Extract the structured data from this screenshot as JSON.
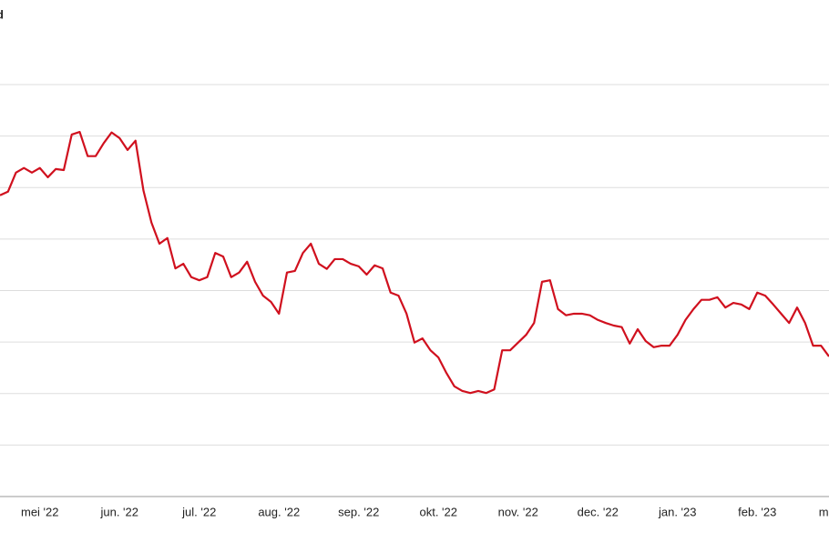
{
  "chart_data": {
    "type": "line",
    "title": "d",
    "categories": [
      null,
      null,
      null,
      null,
      null,
      "mei '22",
      null,
      null,
      null,
      null,
      null,
      null,
      null,
      null,
      null,
      "jun. '22",
      null,
      null,
      null,
      null,
      null,
      null,
      null,
      null,
      null,
      "jul. '22",
      null,
      null,
      null,
      null,
      null,
      null,
      null,
      null,
      null,
      "aug. '22",
      null,
      null,
      null,
      null,
      null,
      null,
      null,
      null,
      null,
      "sep. '22",
      null,
      null,
      null,
      null,
      null,
      null,
      null,
      null,
      null,
      "okt. '22",
      null,
      null,
      null,
      null,
      null,
      null,
      null,
      null,
      null,
      "nov. '22",
      null,
      null,
      null,
      null,
      null,
      null,
      null,
      null,
      null,
      "dec. '22",
      null,
      null,
      null,
      null,
      null,
      null,
      null,
      null,
      null,
      "jan. '23",
      null,
      null,
      null,
      null,
      null,
      null,
      null,
      null,
      null,
      "feb. '23",
      null,
      null,
      null,
      null,
      null,
      null,
      null,
      null,
      "mrt."
    ],
    "values": [
      5.85,
      5.92,
      6.29,
      6.38,
      6.29,
      6.38,
      6.2,
      6.36,
      6.34,
      7.03,
      7.08,
      6.61,
      6.61,
      6.86,
      7.07,
      6.96,
      6.73,
      6.91,
      5.94,
      5.32,
      4.91,
      5.02,
      4.43,
      4.52,
      4.26,
      4.2,
      4.26,
      4.73,
      4.66,
      4.26,
      4.35,
      4.56,
      4.17,
      3.9,
      3.78,
      3.55,
      4.35,
      4.38,
      4.73,
      4.91,
      4.52,
      4.42,
      4.61,
      4.61,
      4.52,
      4.47,
      4.31,
      4.49,
      4.43,
      3.96,
      3.9,
      3.55,
      2.99,
      3.07,
      2.84,
      2.7,
      2.4,
      2.14,
      2.05,
      2.01,
      2.05,
      2.01,
      2.08,
      2.84,
      2.84,
      2.99,
      3.14,
      3.37,
      4.17,
      4.2,
      3.64,
      3.52,
      3.55,
      3.55,
      3.52,
      3.43,
      3.37,
      3.32,
      3.29,
      2.97,
      3.25,
      3.02,
      2.9,
      2.93,
      2.93,
      3.14,
      3.43,
      3.64,
      3.82,
      3.82,
      3.87,
      3.67,
      3.76,
      3.73,
      3.64,
      3.96,
      3.9,
      3.73,
      3.55,
      3.37,
      3.67,
      3.37,
      2.93,
      2.93,
      2.72
    ],
    "color": "#d0101e",
    "ylim": [
      0,
      8
    ],
    "yticks": [
      0,
      1,
      2,
      3,
      4,
      5,
      6,
      7,
      8
    ],
    "grid": true
  }
}
